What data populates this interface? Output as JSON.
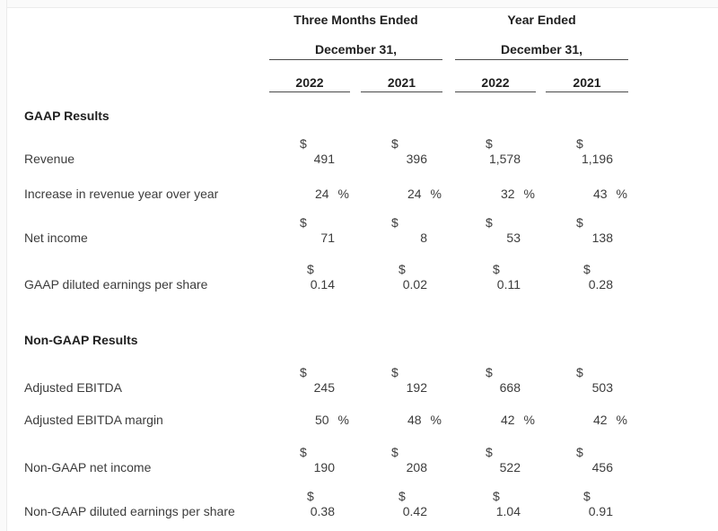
{
  "symbols": {
    "dollar": "$",
    "percent": "%"
  },
  "colors": {
    "text": "#3c3c3c",
    "heading": "#1f1f1f",
    "rule": "#4a4a4a",
    "edge": "#ebebeb"
  },
  "header": {
    "groups": [
      {
        "period": "Three Months Ended",
        "date": "December 31,"
      },
      {
        "period": "Year Ended",
        "date": "December 31,"
      }
    ],
    "years": [
      "2022",
      "2021",
      "2022",
      "2021"
    ]
  },
  "sections": [
    {
      "title": "GAAP Results",
      "rows": [
        {
          "label": "Revenue",
          "format": "currency",
          "values": [
            "491",
            "396",
            "1,578",
            "1,196"
          ]
        },
        {
          "label": "Increase in revenue year over year",
          "format": "percent",
          "values": [
            "24",
            "24",
            "32",
            "43"
          ]
        },
        {
          "label": "Net income",
          "format": "currency",
          "values": [
            "71",
            "8",
            "53",
            "138"
          ]
        },
        {
          "label": "GAAP diluted earnings per share",
          "format": "currency",
          "values": [
            "0.14",
            "0.02",
            "0.11",
            "0.28"
          ]
        }
      ]
    },
    {
      "title": "Non-GAAP Results",
      "rows": [
        {
          "label": "Adjusted EBITDA",
          "format": "currency",
          "values": [
            "245",
            "192",
            "668",
            "503"
          ]
        },
        {
          "label": "Adjusted EBITDA margin",
          "format": "percent",
          "values": [
            "50",
            "48",
            "42",
            "42"
          ]
        },
        {
          "label": "Non-GAAP net income",
          "format": "currency",
          "values": [
            "190",
            "208",
            "522",
            "456"
          ]
        },
        {
          "label": "Non-GAAP diluted earnings per share",
          "format": "currency",
          "values": [
            "0.38",
            "0.42",
            "1.04",
            "0.91"
          ]
        }
      ]
    }
  ]
}
